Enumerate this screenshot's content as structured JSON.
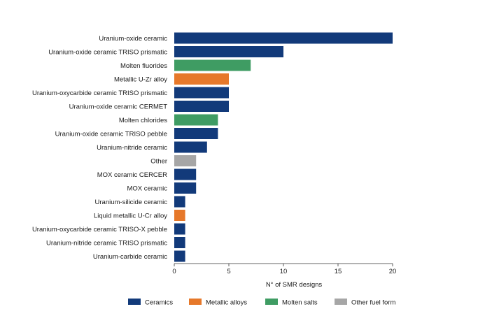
{
  "chart_data": {
    "type": "bar",
    "orientation": "horizontal",
    "xlabel": "N° of SMR designs",
    "xlim": [
      0,
      20
    ],
    "xticks": [
      0,
      5,
      10,
      15,
      20
    ],
    "grid": false,
    "legend_position": "bottom",
    "legend": [
      {
        "name": "Ceramics",
        "color": "#123a7a"
      },
      {
        "name": "Metallic alloys",
        "color": "#e6782a"
      },
      {
        "name": "Molten salts",
        "color": "#3f9c63"
      },
      {
        "name": "Other fuel form",
        "color": "#a6a6a6"
      }
    ],
    "bars": [
      {
        "label": "Uranium-oxide ceramic",
        "value": 20,
        "group": "Ceramics"
      },
      {
        "label": "Uranium-oxide ceramic TRISO prismatic",
        "value": 10,
        "group": "Ceramics"
      },
      {
        "label": "Molten fluorides",
        "value": 7,
        "group": "Molten salts"
      },
      {
        "label": "Metallic U-Zr alloy",
        "value": 5,
        "group": "Metallic alloys"
      },
      {
        "label": "Uranium-oxycarbide ceramic TRISO prismatic",
        "value": 5,
        "group": "Ceramics"
      },
      {
        "label": "Uranium-oxide ceramic CERMET",
        "value": 5,
        "group": "Ceramics"
      },
      {
        "label": "Molten chlorides",
        "value": 4,
        "group": "Molten salts"
      },
      {
        "label": "Uranium-oxide ceramic TRISO pebble",
        "value": 4,
        "group": "Ceramics"
      },
      {
        "label": "Uranium-nitride ceramic",
        "value": 3,
        "group": "Ceramics"
      },
      {
        "label": "Other",
        "value": 2,
        "group": "Other fuel form"
      },
      {
        "label": "MOX ceramic CERCER",
        "value": 2,
        "group": "Ceramics"
      },
      {
        "label": "MOX ceramic",
        "value": 2,
        "group": "Ceramics"
      },
      {
        "label": "Uranium-silicide ceramic",
        "value": 1,
        "group": "Ceramics"
      },
      {
        "label": "Liquid metallic U-Cr alloy",
        "value": 1,
        "group": "Metallic alloys"
      },
      {
        "label": "Uranium-oxycarbide ceramic TRISO-X pebble",
        "value": 1,
        "group": "Ceramics"
      },
      {
        "label": "Uranium-nitride ceramic TRISO prismatic",
        "value": 1,
        "group": "Ceramics"
      },
      {
        "label": "Uranium-carbide ceramic",
        "value": 1,
        "group": "Ceramics"
      }
    ]
  }
}
